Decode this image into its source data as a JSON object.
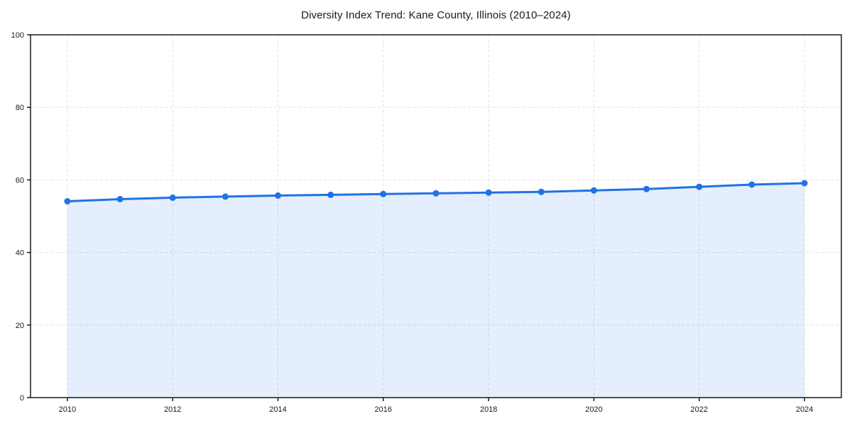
{
  "chart_data": {
    "type": "line",
    "title": "Diversity Index Trend: Kane County, Illinois (2010–2024)",
    "x": [
      2010,
      2011,
      2012,
      2013,
      2014,
      2015,
      2016,
      2017,
      2018,
      2019,
      2020,
      2021,
      2022,
      2023,
      2024
    ],
    "series": [
      {
        "name": "Diversity Index",
        "values": [
          54.1,
          54.7,
          55.1,
          55.4,
          55.7,
          55.9,
          56.1,
          56.3,
          56.5,
          56.7,
          57.1,
          57.5,
          58.1,
          58.7,
          59.1
        ]
      }
    ],
    "xlabel": "",
    "ylabel": "",
    "xlim": [
      2009.3,
      2024.7
    ],
    "ylim": [
      0,
      100
    ],
    "xticks": [
      2010,
      2012,
      2014,
      2016,
      2018,
      2020,
      2022,
      2024
    ],
    "yticks": [
      0,
      20,
      40,
      60,
      80,
      100
    ],
    "grid": true,
    "grid_style": "dashed",
    "legend": "none",
    "marker": "circle",
    "fill_area": true,
    "colors": {
      "line": "#2172e5",
      "fill": "#2172e5",
      "fill_opacity": 0.12,
      "grid": "#e2e2e2",
      "axis": "#1a1a1a",
      "text": "#1a1a1a",
      "background": "#ffffff"
    }
  }
}
